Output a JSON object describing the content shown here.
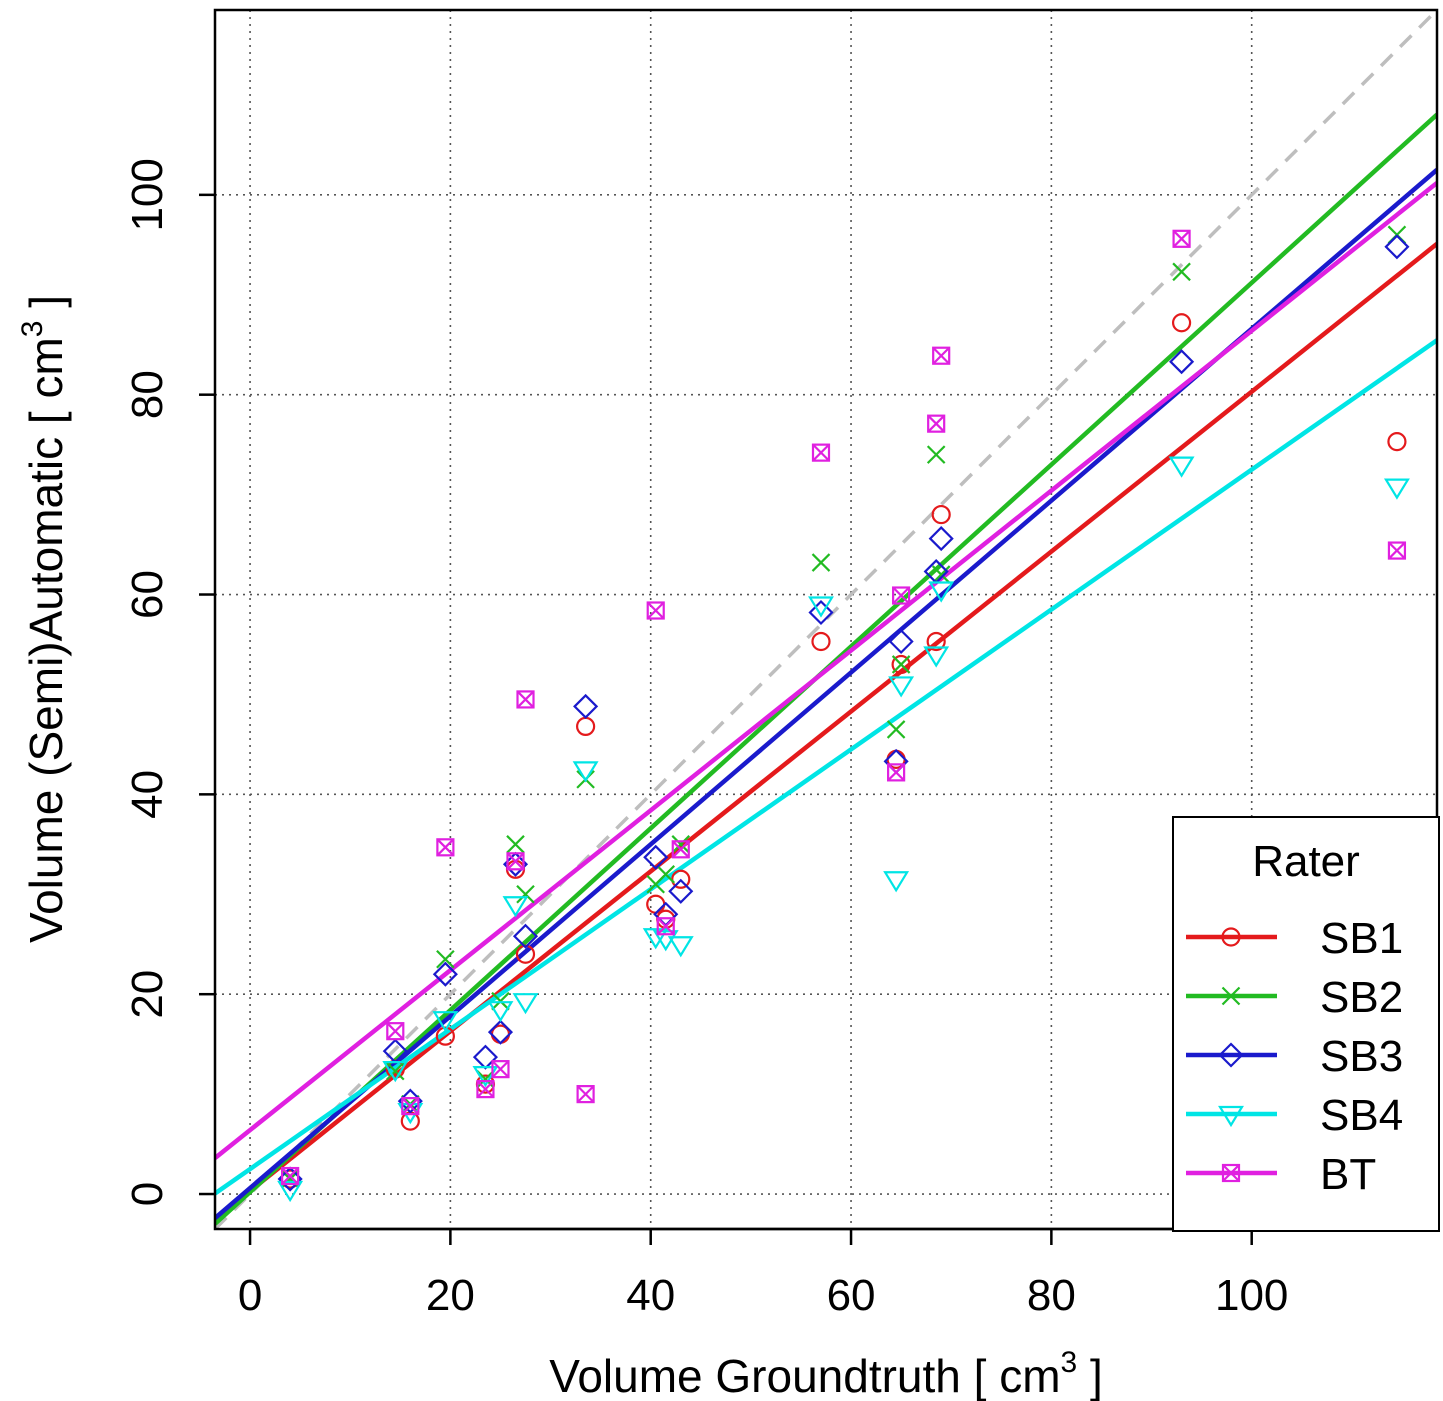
{
  "chart_data": {
    "type": "scatter",
    "xlabel": "Volume Groundtruth [ cm",
    "xlabel_sup": "3",
    "xlabel_close": " ]",
    "ylabel": "Volume (Semi)Automatic [ cm",
    "ylabel_sup": "3",
    "ylabel_close": " ]",
    "xlim": [
      -3.5,
      118.5
    ],
    "ylim": [
      -3.5,
      118.5
    ],
    "x_ticks": [
      0,
      20,
      40,
      60,
      80,
      100
    ],
    "x_tick_labels": [
      "0",
      "20",
      "40",
      "60",
      "80",
      "100"
    ],
    "y_ticks": [
      0,
      20,
      40,
      60,
      80,
      100
    ],
    "y_tick_labels": [
      "0",
      "20",
      "40",
      "60",
      "80",
      "100"
    ],
    "grid": true,
    "grid_style": "dotted",
    "identity_line": {
      "slope": 1,
      "intercept": 0,
      "color": "#bebebe",
      "style": "dashed"
    },
    "legend": {
      "title": "Rater",
      "placement": "bottom-right",
      "entries": [
        "SB1",
        "SB2",
        "SB3",
        "SB4",
        "BT"
      ]
    },
    "series": [
      {
        "name": "SB1",
        "color": "#e41a1c",
        "marker": "circle",
        "fit": {
          "slope": 0.8,
          "intercept": 0.3
        },
        "points": [
          [
            4,
            1.5
          ],
          [
            14.5,
            12.5
          ],
          [
            16,
            7.3
          ],
          [
            19.5,
            15.8
          ],
          [
            23.5,
            11
          ],
          [
            25,
            16
          ],
          [
            26.5,
            32.5
          ],
          [
            27.5,
            24
          ],
          [
            33.5,
            46.8
          ],
          [
            40.5,
            29
          ],
          [
            41.5,
            27.5
          ],
          [
            43,
            31.5
          ],
          [
            57,
            55.3
          ],
          [
            64.5,
            43.5
          ],
          [
            65,
            53
          ],
          [
            68.5,
            55.3
          ],
          [
            69,
            68
          ],
          [
            93,
            87.2
          ],
          [
            114.5,
            75.3
          ]
        ]
      },
      {
        "name": "SB2",
        "color": "#22bb22",
        "marker": "x",
        "fit": {
          "slope": 0.91,
          "intercept": 0.2
        },
        "points": [
          [
            4,
            1.5
          ],
          [
            14.5,
            12.3
          ],
          [
            16,
            9
          ],
          [
            19.5,
            23.5
          ],
          [
            23.5,
            11.5
          ],
          [
            25,
            19.3
          ],
          [
            26.5,
            35
          ],
          [
            27.5,
            30
          ],
          [
            33.5,
            41.5
          ],
          [
            40.5,
            31
          ],
          [
            41.5,
            32
          ],
          [
            43,
            35
          ],
          [
            57,
            63.2
          ],
          [
            64.5,
            46.5
          ],
          [
            65,
            53
          ],
          [
            68.5,
            74
          ],
          [
            69,
            62
          ],
          [
            93,
            92.3
          ],
          [
            114.5,
            96
          ]
        ]
      },
      {
        "name": "SB3",
        "color": "#1a1acc",
        "marker": "diamond",
        "fit": {
          "slope": 0.86,
          "intercept": 0.6
        },
        "points": [
          [
            4,
            1.5
          ],
          [
            14.5,
            14.3
          ],
          [
            16,
            9.3
          ],
          [
            19.5,
            22
          ],
          [
            23.5,
            13.7
          ],
          [
            25,
            16.2
          ],
          [
            26.5,
            33
          ],
          [
            27.5,
            25.8
          ],
          [
            33.5,
            48.8
          ],
          [
            40.5,
            33.7
          ],
          [
            41.5,
            28
          ],
          [
            43,
            30.3
          ],
          [
            57,
            58.2
          ],
          [
            64.5,
            43.3
          ],
          [
            65,
            55.3
          ],
          [
            68.5,
            62.3
          ],
          [
            69,
            65.6
          ],
          [
            93,
            83.3
          ],
          [
            114.5,
            94.8
          ]
        ]
      },
      {
        "name": "SB4",
        "color": "#00e5e5",
        "marker": "triangle-down",
        "fit": {
          "slope": 0.7,
          "intercept": 2.5
        },
        "points": [
          [
            4,
            0.5
          ],
          [
            14.5,
            12.5
          ],
          [
            16,
            8.3
          ],
          [
            19.5,
            17.5
          ],
          [
            23.5,
            12
          ],
          [
            25,
            18.5
          ],
          [
            26.5,
            29
          ],
          [
            27.5,
            19.3
          ],
          [
            33.5,
            42.5
          ],
          [
            40.5,
            25.8
          ],
          [
            41.5,
            25.6
          ],
          [
            43,
            25
          ],
          [
            57,
            59
          ],
          [
            64.5,
            31.5
          ],
          [
            65,
            51
          ],
          [
            68.5,
            54
          ],
          [
            69,
            60.5
          ],
          [
            93,
            73
          ],
          [
            114.5,
            70.8
          ]
        ]
      },
      {
        "name": "BT",
        "color": "#e020e0",
        "marker": "square-x",
        "fit": {
          "slope": 0.8,
          "intercept": 6.4
        },
        "points": [
          [
            4,
            1.8
          ],
          [
            14.5,
            16.3
          ],
          [
            16,
            8.8
          ],
          [
            19.5,
            34.7
          ],
          [
            23.5,
            10.5
          ],
          [
            25,
            12.5
          ],
          [
            26.5,
            33.3
          ],
          [
            27.5,
            49.5
          ],
          [
            33.5,
            10
          ],
          [
            40.5,
            58.4
          ],
          [
            41.5,
            26.8
          ],
          [
            43,
            34.5
          ],
          [
            57,
            74.2
          ],
          [
            64.5,
            42.2
          ],
          [
            65,
            59.9
          ],
          [
            68.5,
            77.1
          ],
          [
            69,
            83.9
          ],
          [
            93,
            95.6
          ],
          [
            114.5,
            64.4
          ]
        ]
      }
    ]
  }
}
